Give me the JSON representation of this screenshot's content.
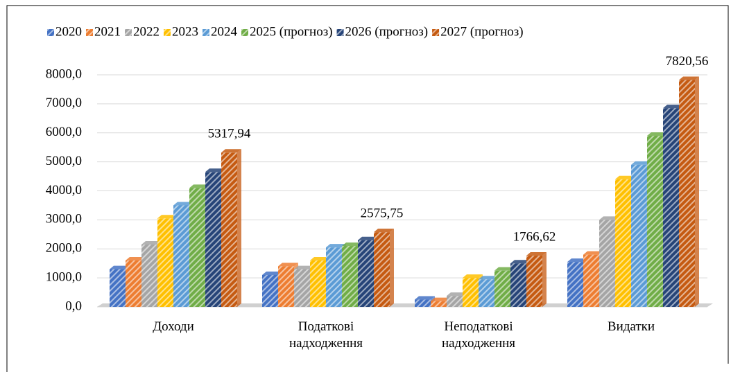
{
  "chart_data": {
    "type": "bar",
    "categories": [
      "Доходи",
      "Податкові надходження",
      "Неподаткові надходження",
      "Видатки"
    ],
    "series": [
      {
        "name": "2020",
        "color": "#4472c4",
        "values": [
          1300,
          1100,
          250,
          1550
        ]
      },
      {
        "name": "2021",
        "color": "#ed7d31",
        "values": [
          1600,
          1400,
          200,
          1800
        ]
      },
      {
        "name": "2022",
        "color": "#a5a5a5",
        "values": [
          2150,
          1300,
          380,
          3000
        ]
      },
      {
        "name": "2023",
        "color": "#ffc000",
        "values": [
          3050,
          1600,
          1000,
          4400
        ]
      },
      {
        "name": "2024",
        "color": "#5b9bd5",
        "values": [
          3500,
          2050,
          950,
          4900
        ]
      },
      {
        "name": "2025 (прогноз)",
        "color": "#70ad47",
        "values": [
          4100,
          2100,
          1250,
          5900
        ]
      },
      {
        "name": "2026 (прогноз)",
        "color": "#264478",
        "values": [
          4650,
          2300,
          1500,
          6850
        ]
      },
      {
        "name": "2027 (прогноз)",
        "color": "#c55a11",
        "values": [
          5317.94,
          2575.75,
          1766.62,
          7820.56
        ],
        "value_labels": [
          "5317,94",
          "2575,75",
          "1766,62",
          "7820,56"
        ]
      }
    ],
    "ylim": [
      0,
      8000
    ],
    "yticks": [
      {
        "value": 0,
        "label": "0,0"
      },
      {
        "value": 1000,
        "label": "1000,0"
      },
      {
        "value": 2000,
        "label": "2000,0"
      },
      {
        "value": 3000,
        "label": "3000,0"
      },
      {
        "value": 4000,
        "label": "4000,0"
      },
      {
        "value": 5000,
        "label": "5000,0"
      },
      {
        "value": 6000,
        "label": "6000,0"
      },
      {
        "value": 7000,
        "label": "7000,0"
      },
      {
        "value": 8000,
        "label": "8000,0"
      }
    ],
    "grid": true,
    "legend": "top"
  }
}
